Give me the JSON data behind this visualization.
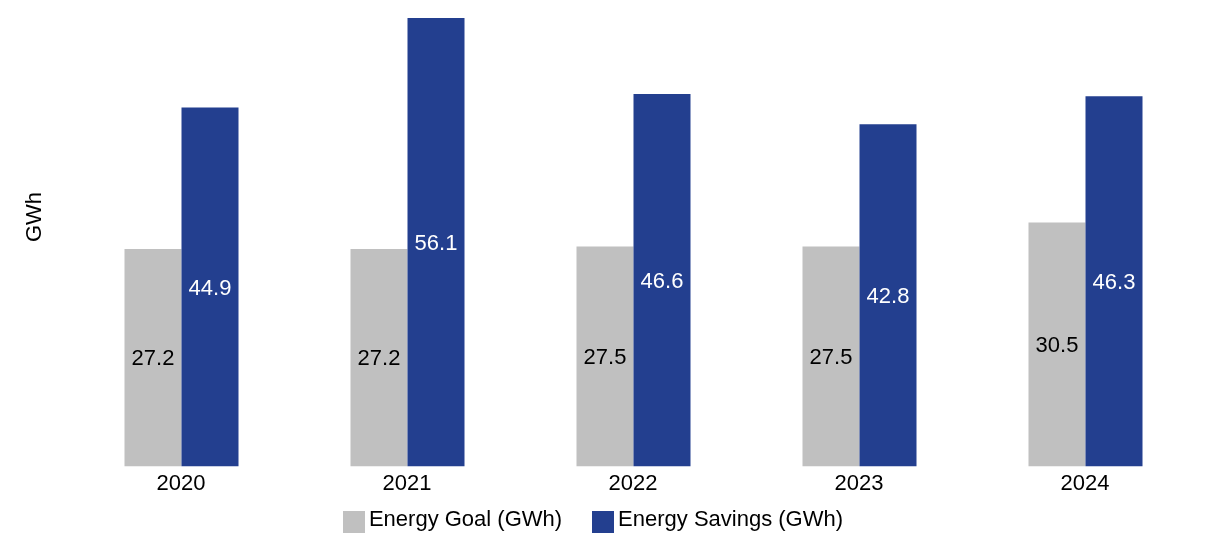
{
  "chart_data": {
    "type": "bar",
    "ylabel": "GWh",
    "categories": [
      "2020",
      "2021",
      "2022",
      "2023",
      "2024"
    ],
    "series": [
      {
        "name": "Energy Goal (GWh)",
        "color": "#c0c0c0",
        "values": [
          27.2,
          27.2,
          27.5,
          27.5,
          30.5
        ]
      },
      {
        "name": "Energy Savings (GWh)",
        "color": "#233f8f",
        "values": [
          44.9,
          56.1,
          46.6,
          42.8,
          46.3
        ]
      }
    ],
    "data_labels": true,
    "legend": "bottom",
    "grid": false,
    "tick_labels": "x"
  }
}
